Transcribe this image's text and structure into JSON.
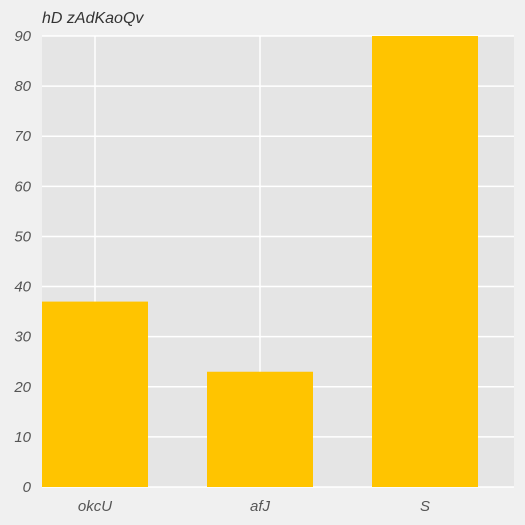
{
  "chart_data": {
    "type": "bar",
    "title": "hD zAdKaoQv",
    "categories": [
      "okcU",
      "afJ",
      "S"
    ],
    "values": [
      37,
      23,
      90
    ],
    "xlabel": "",
    "ylabel": "",
    "ylim": [
      0,
      90
    ],
    "yticks": [
      0,
      10,
      20,
      30,
      40,
      50,
      60,
      70,
      80,
      90
    ],
    "grid": true,
    "bar_color": "#ffc400",
    "plot_background": "#e5e5e5",
    "grid_color": "#ffffff"
  }
}
